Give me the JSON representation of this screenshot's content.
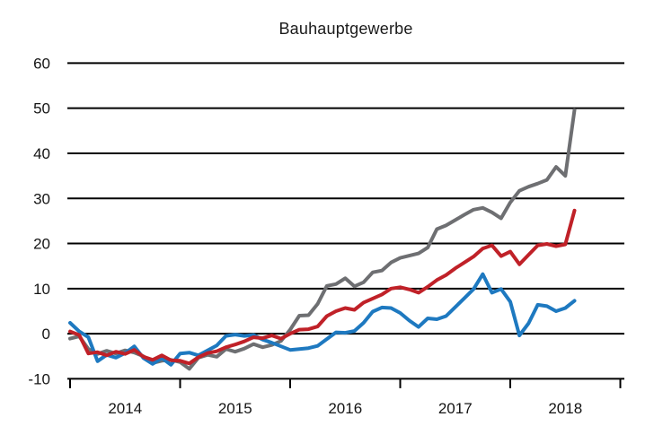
{
  "page": {
    "title": "Bauhauptgewerbe"
  },
  "chart_data": {
    "type": "line",
    "title": "Bauhauptgewerbe",
    "x_tick_labels": [
      "2014",
      "2015",
      "2016",
      "2017",
      "2018"
    ],
    "x_unit": "month",
    "x_start": "2014-01",
    "x_end": "2018-08",
    "ylim": [
      -10,
      60
    ],
    "yticks": [
      60,
      50,
      40,
      30,
      20,
      10,
      0,
      -10
    ],
    "grid": "horizontal",
    "legend": "none",
    "background_color": "#ffffff",
    "axis_color": "#000000",
    "text_color": "#141414",
    "series": [
      {
        "name": "gray",
        "color": "#6e6f72",
        "values": [
          -1.1,
          -0.6,
          -3.4,
          -4.5,
          -3.8,
          -4.4,
          -3.7,
          -4.2,
          -5.0,
          -6.5,
          -6.0,
          -5.8,
          -6.3,
          -7.8,
          -5.3,
          -4.7,
          -5.1,
          -3.4,
          -4.0,
          -3.3,
          -2.3,
          -3.0,
          -2.5,
          -1.6,
          0.9,
          4.0,
          4.1,
          6.6,
          10.6,
          11.0,
          12.3,
          10.5,
          11.4,
          13.6,
          14.0,
          15.8,
          16.8,
          17.3,
          17.8,
          19.1,
          23.2,
          24.0,
          25.2,
          26.4,
          27.5,
          27.9,
          26.9,
          25.6,
          29.1,
          31.7,
          32.6,
          33.3,
          34.1,
          37.0,
          35.0,
          49.6
        ]
      },
      {
        "name": "blue",
        "color": "#1e79c0",
        "values": [
          2.4,
          0.5,
          -0.8,
          -6.1,
          -4.7,
          -5.3,
          -4.3,
          -2.8,
          -5.4,
          -6.7,
          -5.4,
          -6.9,
          -4.4,
          -4.2,
          -4.8,
          -3.7,
          -2.6,
          -0.5,
          -0.2,
          -0.5,
          -0.3,
          -1.3,
          -2.0,
          -2.8,
          -3.6,
          -3.4,
          -3.2,
          -2.7,
          -1.2,
          0.3,
          0.2,
          0.6,
          2.4,
          4.9,
          5.8,
          5.7,
          4.6,
          2.9,
          1.5,
          3.4,
          3.2,
          3.9,
          5.9,
          7.9,
          9.9,
          13.2,
          9.1,
          9.9,
          7.1,
          -0.4,
          2.3,
          6.4,
          6.1,
          5.0,
          5.7,
          7.3
        ]
      },
      {
        "name": "red",
        "color": "#c02128",
        "values": [
          0.5,
          -0.3,
          -4.4,
          -4.1,
          -4.8,
          -4.0,
          -4.5,
          -3.6,
          -5.1,
          -5.8,
          -4.8,
          -5.9,
          -6.0,
          -6.6,
          -5.2,
          -4.3,
          -3.9,
          -3.0,
          -2.4,
          -1.7,
          -0.8,
          -1.0,
          -0.4,
          -1.1,
          0.0,
          0.9,
          1.0,
          1.6,
          3.9,
          5.0,
          5.7,
          5.3,
          6.9,
          7.8,
          8.7,
          10.0,
          10.3,
          9.8,
          9.1,
          10.4,
          11.9,
          13.0,
          14.5,
          15.8,
          17.1,
          18.9,
          19.6,
          17.2,
          18.2,
          15.4,
          17.5,
          19.6,
          19.9,
          19.4,
          19.8,
          27.3
        ]
      }
    ]
  }
}
